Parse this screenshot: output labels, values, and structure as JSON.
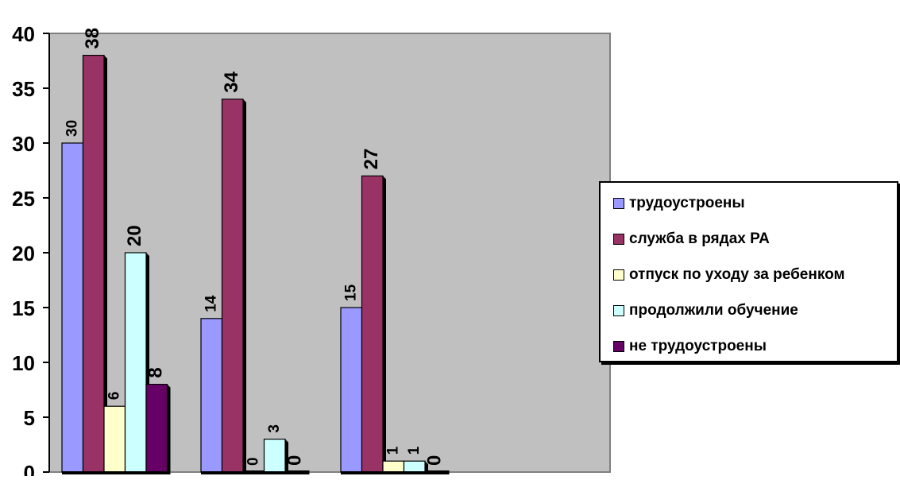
{
  "chart_data": {
    "type": "bar",
    "title": "",
    "xlabel": "",
    "ylabel": "",
    "ylim": [
      0,
      40
    ],
    "yticks": [
      0,
      5,
      10,
      15,
      20,
      25,
      30,
      35,
      40
    ],
    "grid": false,
    "legend_position": "right",
    "categories": [
      "",
      "",
      ""
    ],
    "series": [
      {
        "name": "трудоустроены",
        "values": [
          30,
          14,
          15
        ],
        "color": "#9999ff"
      },
      {
        "name": "служба в рядах РА",
        "values": [
          38,
          34,
          27
        ],
        "color": "#993366"
      },
      {
        "name": "отпуск по уходу за ребенком",
        "values": [
          6,
          0,
          1
        ],
        "color": "#ffffcc"
      },
      {
        "name": "продолжили обучение",
        "values": [
          20,
          3,
          1
        ],
        "color": "#ccffff"
      },
      {
        "name": "не трудоустроены",
        "values": [
          8,
          0,
          0
        ],
        "color": "#660066"
      }
    ],
    "plot_background": "#c0c0c0"
  }
}
